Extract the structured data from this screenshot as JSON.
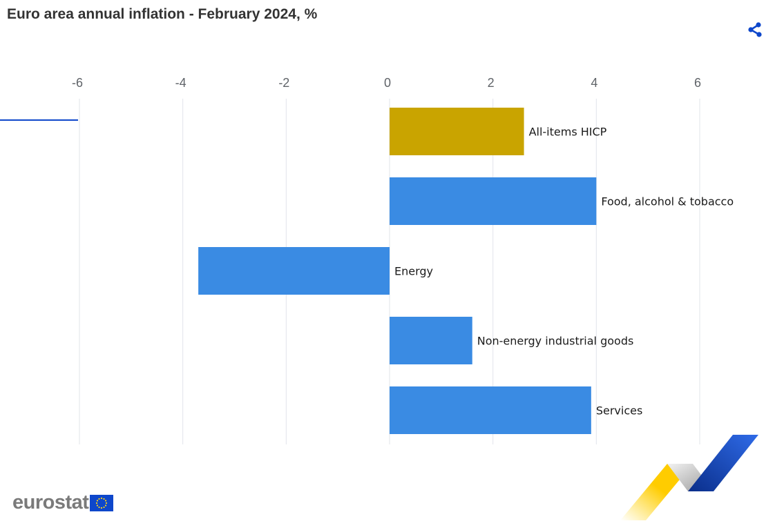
{
  "header": {
    "title": "Euro area annual inflation - February 2024, %"
  },
  "share": {
    "icon": "share-icon"
  },
  "branding": {
    "logo_text": "eurostat",
    "flag_icon": "eu-flag-icon"
  },
  "colors": {
    "highlight_bar": "#C9A400",
    "component_bar": "#3A8BE3",
    "grid": "#E1E4EA",
    "accent_line": "#0E47CB",
    "share_icon": "#0E47CB"
  },
  "chart_data": {
    "type": "bar",
    "orientation": "horizontal",
    "title": "Euro area annual inflation - February 2024, %",
    "categories": [
      "All-items HICP",
      "Food, alcohol & tobacco",
      "Energy",
      "Non-energy industrial goods",
      "Services"
    ],
    "values": [
      2.6,
      4.0,
      -3.7,
      1.6,
      3.9
    ],
    "highlighted_category": "All-items HICP",
    "xlim": [
      -6,
      6
    ],
    "x_ticks": [
      "-6",
      "-4",
      "-2",
      "0",
      "2",
      "4",
      "6"
    ],
    "axis_position": "top",
    "grid": true,
    "legend": "none"
  }
}
